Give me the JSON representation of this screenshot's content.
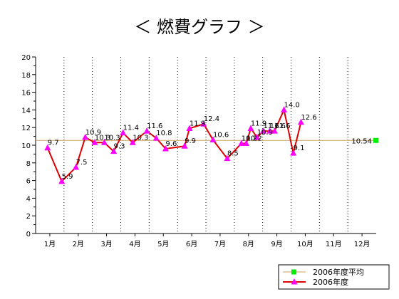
{
  "chart_data": {
    "type": "line",
    "title": "＜ 燃費グラフ ＞",
    "xlabel": "",
    "ylabel": "",
    "categories": [
      "1月",
      "2月",
      "3月",
      "4月",
      "5月",
      "6月",
      "7月",
      "8月",
      "9月",
      "10月",
      "11月",
      "12月"
    ],
    "xlim": [
      0.5,
      12.5
    ],
    "ylim": [
      0,
      20
    ],
    "yticks": [
      "0",
      "2",
      "4",
      "6",
      "8",
      "10",
      "12",
      "14",
      "16",
      "18",
      "20"
    ],
    "grid": {
      "vertical": "dotted",
      "horizontal": false
    },
    "legend_position": "bottom-right",
    "series": [
      {
        "name": "2006年度",
        "color": "#dd0000",
        "marker_color": "#ff00ff",
        "marker": "triangle",
        "points": [
          {
            "x": 0.92,
            "y": 9.7,
            "label": "9.7"
          },
          {
            "x": 1.42,
            "y": 5.9,
            "label": "5.9"
          },
          {
            "x": 1.92,
            "y": 7.5,
            "label": "7.5"
          },
          {
            "x": 2.25,
            "y": 10.9,
            "label": "10.9"
          },
          {
            "x": 2.58,
            "y": 10.3,
            "label": "10.3"
          },
          {
            "x": 2.92,
            "y": 10.3,
            "label": "10.3"
          },
          {
            "x": 3.25,
            "y": 9.3,
            "label": "9.3"
          },
          {
            "x": 3.58,
            "y": 11.4,
            "label": "11.4"
          },
          {
            "x": 3.92,
            "y": 10.3,
            "label": "10.3"
          },
          {
            "x": 4.42,
            "y": 11.6,
            "label": "11.6"
          },
          {
            "x": 4.75,
            "y": 10.8,
            "label": "10.8"
          },
          {
            "x": 5.08,
            "y": 9.6,
            "label": "9.6"
          },
          {
            "x": 5.75,
            "y": 9.9,
            "label": "9.9"
          },
          {
            "x": 5.92,
            "y": 11.9,
            "label": "11.9"
          },
          {
            "x": 6.42,
            "y": 12.4,
            "label": "12.4"
          },
          {
            "x": 6.75,
            "y": 10.6,
            "label": "10.6"
          },
          {
            "x": 7.25,
            "y": 8.5,
            "label": "8.5"
          },
          {
            "x": 7.75,
            "y": 10.2,
            "label": "10.2"
          },
          {
            "x": 7.92,
            "y": 10.2,
            "label": "10.2"
          },
          {
            "x": 8.08,
            "y": 11.9,
            "label": "11.9"
          },
          {
            "x": 8.3,
            "y": 10.9,
            "label": "10.9"
          },
          {
            "x": 8.52,
            "y": 11.6,
            "label": "11.6"
          },
          {
            "x": 8.75,
            "y": 11.6,
            "label": "11.6"
          },
          {
            "x": 8.92,
            "y": 11.6,
            "label": "11.6"
          },
          {
            "x": 9.25,
            "y": 14.0,
            "label": "14.0"
          },
          {
            "x": 9.58,
            "y": 9.1,
            "label": "9.1"
          },
          {
            "x": 9.85,
            "y": 12.6,
            "label": "12.6"
          }
        ]
      },
      {
        "name": "2006年度平均",
        "color": "#c8a060",
        "marker_color": "#00ee00",
        "marker": "square",
        "value": 10.54,
        "label": "10.54"
      }
    ]
  }
}
